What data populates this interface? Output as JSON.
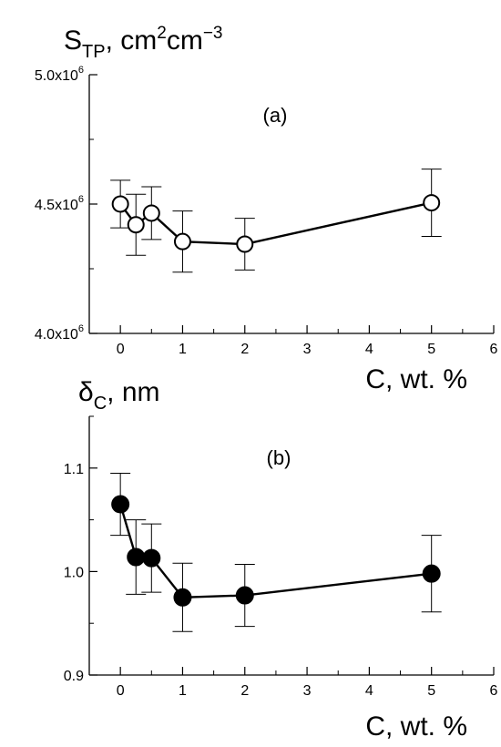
{
  "chart_data": [
    {
      "type": "scatter",
      "panel_label": "(a)",
      "ylabel": {
        "main": "S",
        "sub": "TP",
        "rest": ", cm",
        "sup1": "2",
        "mid": "cm",
        "sup2": "−3"
      },
      "xlabel": "C, wt. %",
      "xlim": [
        -0.5,
        6
      ],
      "ylim": [
        4000000,
        5000000
      ],
      "xticks": [
        0,
        1,
        2,
        3,
        4,
        5,
        6
      ],
      "xtick_labels": [
        "0",
        "1",
        "2",
        "3",
        "4",
        "5",
        "6"
      ],
      "yticks": [
        4000000,
        4500000,
        5000000
      ],
      "ytick_labels": [
        {
          "mant": "4.0x10",
          "exp": "6"
        },
        {
          "mant": "4.5x10",
          "exp": "6"
        },
        {
          "mant": "5.0x10",
          "exp": "6"
        }
      ],
      "marker": "open-circle",
      "series": [
        {
          "x": [
            0,
            0.25,
            0.5,
            1,
            2,
            5
          ],
          "y": [
            4500000,
            4420000,
            4465000,
            4355000,
            4345000,
            4505000
          ],
          "err": [
            92000,
            118000,
            102000,
            118000,
            100000,
            130000
          ]
        }
      ]
    },
    {
      "type": "scatter",
      "panel_label": "(b)",
      "ylabel": {
        "main": "δ",
        "sub": "C",
        "rest": ", nm"
      },
      "xlabel": "C, wt. %",
      "xlim": [
        -0.5,
        6
      ],
      "ylim": [
        0.9,
        1.15
      ],
      "xticks": [
        0,
        1,
        2,
        3,
        4,
        5,
        6
      ],
      "xtick_labels": [
        "0",
        "1",
        "2",
        "3",
        "4",
        "5",
        "6"
      ],
      "yticks": [
        0.9,
        1.0,
        1.1
      ],
      "ytick_labels": [
        "0.9",
        "1.0",
        "1.1"
      ],
      "marker": "filled-circle",
      "series": [
        {
          "x": [
            0,
            0.25,
            0.5,
            1,
            2,
            5
          ],
          "y": [
            1.065,
            1.014,
            1.013,
            0.975,
            0.977,
            0.998
          ],
          "err": [
            0.03,
            0.036,
            0.033,
            0.033,
            0.03,
            0.037
          ]
        }
      ]
    }
  ]
}
